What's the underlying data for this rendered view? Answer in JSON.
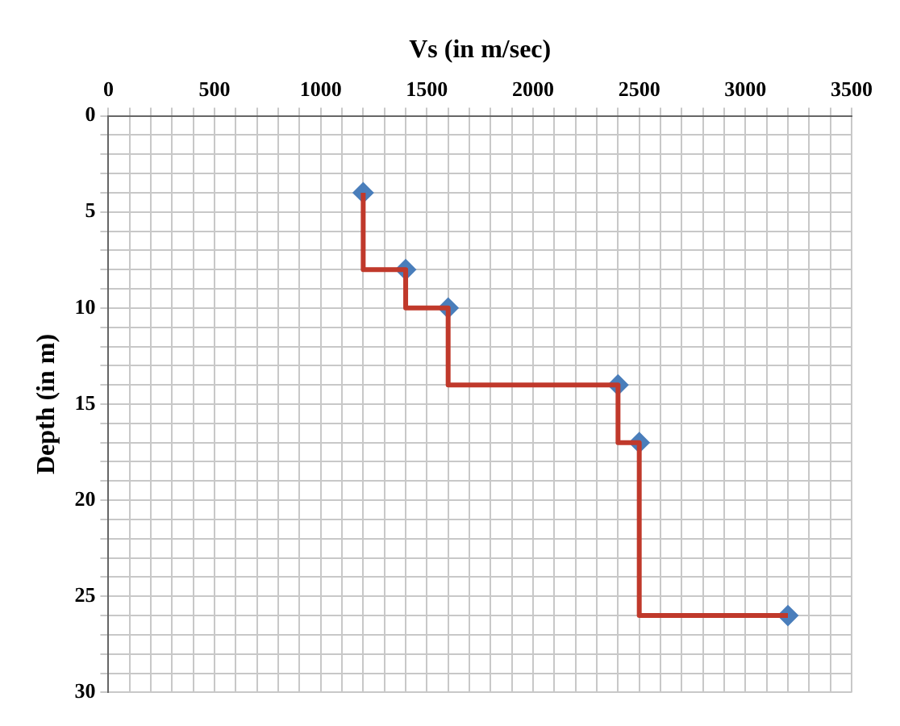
{
  "chart_data": {
    "type": "step",
    "xlabel": "Vs (in m/sec)",
    "ylabel": "Depth (in m)",
    "xlim": [
      0,
      3500
    ],
    "xticks": [
      0,
      {
        "value": 100,
        "label": null
      },
      {
        "value": 200,
        "label": null
      },
      {
        "value": 300,
        "label": null
      },
      {
        "value": 400,
        "label": null
      },
      500,
      {
        "value": 600,
        "label": null
      },
      {
        "value": 700,
        "label": null
      },
      {
        "value": 800,
        "label": null
      },
      {
        "value": 900,
        "label": null
      },
      1000,
      {
        "value": 1100,
        "label": null
      },
      {
        "value": 1200,
        "label": null
      },
      {
        "value": 1300,
        "label": null
      },
      {
        "value": 1400,
        "label": null
      },
      1500,
      {
        "value": 1600,
        "label": null
      },
      {
        "value": 1700,
        "label": null
      },
      {
        "value": 1800,
        "label": null
      },
      {
        "value": 1900,
        "label": null
      },
      2000,
      {
        "value": 2100,
        "label": null
      },
      {
        "value": 2200,
        "label": null
      },
      {
        "value": 2300,
        "label": null
      },
      {
        "value": 2400,
        "label": null
      },
      2500,
      {
        "value": 2600,
        "label": null
      },
      {
        "value": 2700,
        "label": null
      },
      {
        "value": 2800,
        "label": null
      },
      {
        "value": 2900,
        "label": null
      },
      3000,
      {
        "value": 3100,
        "label": null
      },
      {
        "value": 3200,
        "label": null
      },
      {
        "value": 3300,
        "label": null
      },
      {
        "value": 3400,
        "label": null
      },
      3500
    ],
    "ylim": [
      30,
      0
    ],
    "yticks": [
      0,
      {
        "value": 1,
        "label": null
      },
      {
        "value": 2,
        "label": null
      },
      {
        "value": 3,
        "label": null
      },
      {
        "value": 4,
        "label": null
      },
      5,
      {
        "value": 6,
        "label": null
      },
      {
        "value": 7,
        "label": null
      },
      {
        "value": 8,
        "label": null
      },
      {
        "value": 9,
        "label": null
      },
      10,
      {
        "value": 11,
        "label": null
      },
      {
        "value": 12,
        "label": null
      },
      {
        "value": 13,
        "label": null
      },
      {
        "value": 14,
        "label": null
      },
      15,
      {
        "value": 16,
        "label": null
      },
      {
        "value": 17,
        "label": null
      },
      {
        "value": 18,
        "label": null
      },
      {
        "value": 19,
        "label": null
      },
      20,
      {
        "value": 21,
        "label": null
      },
      {
        "value": 22,
        "label": null
      },
      {
        "value": 23,
        "label": null
      },
      {
        "value": 24,
        "label": null
      },
      25,
      {
        "value": 26,
        "label": null
      },
      {
        "value": 27,
        "label": null
      },
      {
        "value": 28,
        "label": null
      },
      {
        "value": 29,
        "label": null
      },
      30
    ],
    "grid": true,
    "series": [
      {
        "type": "step",
        "color": "#c0392b",
        "marker": "none",
        "x": [
          1200,
          1400,
          1600,
          2400,
          2500,
          3200
        ],
        "values": [
          4,
          8,
          10,
          14,
          17,
          26
        ]
      },
      {
        "type": "scatter",
        "color": "#4a7ebb",
        "marker": "diamond",
        "x": [
          1200,
          1400,
          1600,
          2400,
          2500,
          3200
        ],
        "values": [
          4,
          8,
          10,
          14,
          17,
          26
        ]
      }
    ]
  }
}
